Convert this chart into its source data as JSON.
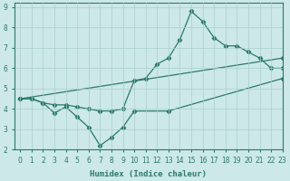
{
  "xlabel": "Humidex (Indice chaleur)",
  "xlim": [
    -0.5,
    23
  ],
  "ylim": [
    2,
    9.2
  ],
  "yticks": [
    2,
    3,
    4,
    5,
    6,
    7,
    8,
    9
  ],
  "xticks": [
    0,
    1,
    2,
    3,
    4,
    5,
    6,
    7,
    8,
    9,
    10,
    11,
    12,
    13,
    14,
    15,
    16,
    17,
    18,
    19,
    20,
    21,
    22,
    23
  ],
  "bg_color": "#cce8e8",
  "line_color": "#2a7a6a",
  "grid_color": "#aacfcf",
  "lines": [
    {
      "x": [
        0,
        1,
        2,
        3,
        4,
        5,
        6,
        7,
        8,
        9,
        10,
        13,
        23
      ],
      "y": [
        4.5,
        4.5,
        4.3,
        3.8,
        4.1,
        3.6,
        3.1,
        2.2,
        2.6,
        3.1,
        3.9,
        3.9,
        5.5
      ]
    },
    {
      "x": [
        0,
        1,
        2,
        3,
        4,
        5,
        6,
        7,
        8,
        9,
        10,
        11,
        12,
        13,
        14,
        15,
        16,
        17,
        18,
        19,
        20,
        21,
        22,
        23
      ],
      "y": [
        4.5,
        4.5,
        4.3,
        4.2,
        4.2,
        4.1,
        4.0,
        3.9,
        3.9,
        4.0,
        5.4,
        5.5,
        6.2,
        6.5,
        7.4,
        8.8,
        8.3,
        7.5,
        7.1,
        7.1,
        6.8,
        6.5,
        6.0,
        6.0
      ]
    },
    {
      "x": [
        0,
        23
      ],
      "y": [
        4.5,
        6.5
      ]
    }
  ]
}
